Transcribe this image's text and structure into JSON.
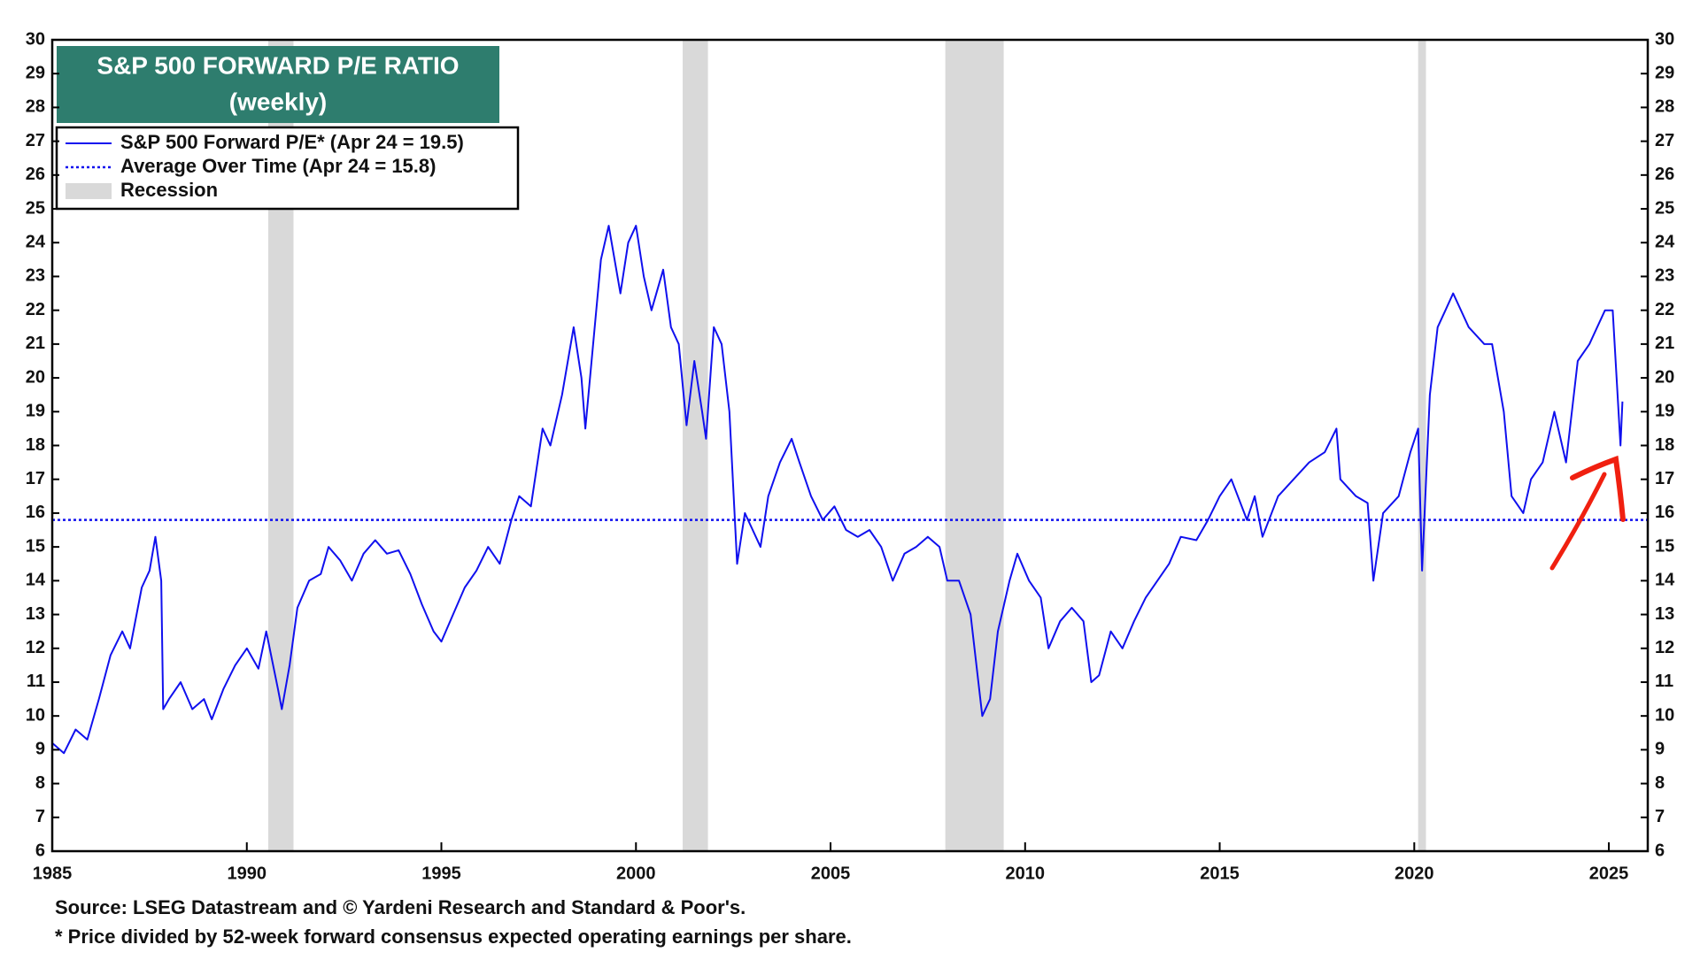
{
  "chart_data": {
    "type": "line",
    "title": "S&P 500 FORWARD P/E RATIO",
    "subtitle": "(weekly)",
    "xlim": [
      1985,
      2026
    ],
    "xticks": [
      1985,
      1990,
      1995,
      2000,
      2005,
      2010,
      2015,
      2020,
      2025
    ],
    "ylim": [
      6,
      30
    ],
    "yticks": [
      6,
      7,
      8,
      9,
      10,
      11,
      12,
      13,
      14,
      15,
      16,
      17,
      18,
      19,
      20,
      21,
      22,
      23,
      24,
      25,
      26,
      27,
      28,
      29,
      30
    ],
    "recessions": {
      "name": "Recession",
      "color": "#d9d9d9",
      "spans": [
        [
          1990.55,
          1991.2
        ],
        [
          2001.2,
          2001.85
        ],
        [
          2007.95,
          2009.45
        ],
        [
          2020.1,
          2020.3
        ]
      ]
    },
    "series": [
      {
        "name": "S&P 500 Forward P/E* (Apr 24 = 19.5)",
        "color": "#1010ee",
        "style": "solid",
        "x": [
          1985.0,
          1985.3,
          1985.6,
          1985.9,
          1986.2,
          1986.5,
          1986.8,
          1987.0,
          1987.3,
          1987.5,
          1987.65,
          1987.8,
          1987.85,
          1988.0,
          1988.3,
          1988.6,
          1988.9,
          1989.1,
          1989.4,
          1989.7,
          1990.0,
          1990.3,
          1990.5,
          1990.8,
          1990.9,
          1991.1,
          1991.3,
          1991.6,
          1991.9,
          1992.1,
          1992.4,
          1992.7,
          1993.0,
          1993.3,
          1993.6,
          1993.9,
          1994.2,
          1994.5,
          1994.8,
          1995.0,
          1995.3,
          1995.6,
          1995.9,
          1996.2,
          1996.5,
          1996.8,
          1997.0,
          1997.3,
          1997.6,
          1997.8,
          1998.1,
          1998.4,
          1998.6,
          1998.7,
          1998.9,
          1999.1,
          1999.3,
          1999.6,
          1999.8,
          2000.0,
          2000.2,
          2000.4,
          2000.7,
          2000.9,
          2001.1,
          2001.3,
          2001.5,
          2001.7,
          2001.8,
          2002.0,
          2002.2,
          2002.4,
          2002.6,
          2002.8,
          2003.0,
          2003.2,
          2003.4,
          2003.7,
          2004.0,
          2004.2,
          2004.5,
          2004.8,
          2005.1,
          2005.4,
          2005.7,
          2006.0,
          2006.3,
          2006.6,
          2006.9,
          2007.2,
          2007.5,
          2007.8,
          2008.0,
          2008.3,
          2008.6,
          2008.8,
          2008.9,
          2009.1,
          2009.3,
          2009.6,
          2009.8,
          2010.1,
          2010.4,
          2010.6,
          2010.9,
          2011.2,
          2011.5,
          2011.7,
          2011.9,
          2012.2,
          2012.5,
          2012.8,
          2013.1,
          2013.4,
          2013.7,
          2014.0,
          2014.4,
          2014.7,
          2015.0,
          2015.3,
          2015.7,
          2015.9,
          2016.1,
          2016.5,
          2016.9,
          2017.3,
          2017.7,
          2018.0,
          2018.1,
          2018.5,
          2018.8,
          2018.95,
          2019.2,
          2019.6,
          2019.9,
          2020.1,
          2020.2,
          2020.4,
          2020.6,
          2020.8,
          2021.0,
          2021.4,
          2021.8,
          2022.0,
          2022.3,
          2022.5,
          2022.8,
          2023.0,
          2023.3,
          2023.6,
          2023.9,
          2024.2,
          2024.5,
          2024.9,
          2025.1,
          2025.2,
          2025.3,
          2025.35
        ],
        "values": [
          9.2,
          8.9,
          9.6,
          9.3,
          10.5,
          11.8,
          12.5,
          12.0,
          13.8,
          14.3,
          15.3,
          14.0,
          10.2,
          10.5,
          11.0,
          10.2,
          10.5,
          9.9,
          10.8,
          11.5,
          12.0,
          11.4,
          12.5,
          10.8,
          10.2,
          11.5,
          13.2,
          14.0,
          14.2,
          15.0,
          14.6,
          14.0,
          14.8,
          15.2,
          14.8,
          14.9,
          14.2,
          13.3,
          12.5,
          12.2,
          13.0,
          13.8,
          14.3,
          15.0,
          14.5,
          15.8,
          16.5,
          16.2,
          18.5,
          18.0,
          19.5,
          21.5,
          20.0,
          18.5,
          21.0,
          23.5,
          24.5,
          22.5,
          24.0,
          24.5,
          23.0,
          22.0,
          23.2,
          21.5,
          21.0,
          18.6,
          20.5,
          19.0,
          18.2,
          21.5,
          21.0,
          19.0,
          14.5,
          16.0,
          15.5,
          15.0,
          16.5,
          17.5,
          18.2,
          17.5,
          16.5,
          15.8,
          16.2,
          15.5,
          15.3,
          15.5,
          15.0,
          14.0,
          14.8,
          15.0,
          15.3,
          15.0,
          14.0,
          14.0,
          13.0,
          11.0,
          10.0,
          10.5,
          12.5,
          14.0,
          14.8,
          14.0,
          13.5,
          12.0,
          12.8,
          13.2,
          12.8,
          11.0,
          11.2,
          12.5,
          12.0,
          12.8,
          13.5,
          14.0,
          14.5,
          15.3,
          15.2,
          15.8,
          16.5,
          17.0,
          15.8,
          16.5,
          15.3,
          16.5,
          17.0,
          17.5,
          17.8,
          18.5,
          17.0,
          16.5,
          16.3,
          14.0,
          16.0,
          16.5,
          17.8,
          18.5,
          14.3,
          19.5,
          21.5,
          22.0,
          22.5,
          21.5,
          21.0,
          21.0,
          19.0,
          16.5,
          16.0,
          17.0,
          17.5,
          19.0,
          17.5,
          20.5,
          21.0,
          22.0,
          22.0,
          20.0,
          18.0,
          19.3
        ]
      },
      {
        "name": "Average Over Time (Apr 24 = 15.8)",
        "color": "#1010ee",
        "style": "dotted",
        "x": [
          1985,
          2026
        ],
        "values": [
          15.8,
          15.8
        ]
      }
    ],
    "notes": [
      "Source: LSEG Datastream and © Yardeni Research and Standard & Poor's.",
      "* Price divided by 52-week forward consensus expected operating earnings per share."
    ]
  }
}
